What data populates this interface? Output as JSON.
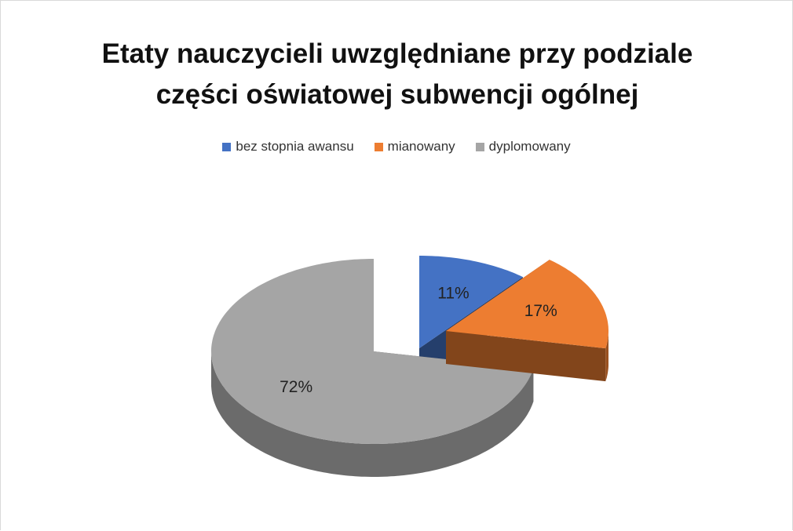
{
  "chart_data": {
    "type": "pie",
    "title": "Etaty nauczycieli uwzględniane przy podziale części oświatowej subwencji ogólnej",
    "categories": [
      "bez stopnia awansu",
      "mianowany",
      "dyplomowany"
    ],
    "values": [
      11,
      17,
      72
    ],
    "value_labels": [
      "11%",
      "17%",
      "72%"
    ],
    "colors": [
      "#4472c4",
      "#ed7d31",
      "#a5a5a5"
    ],
    "legend": "top"
  }
}
